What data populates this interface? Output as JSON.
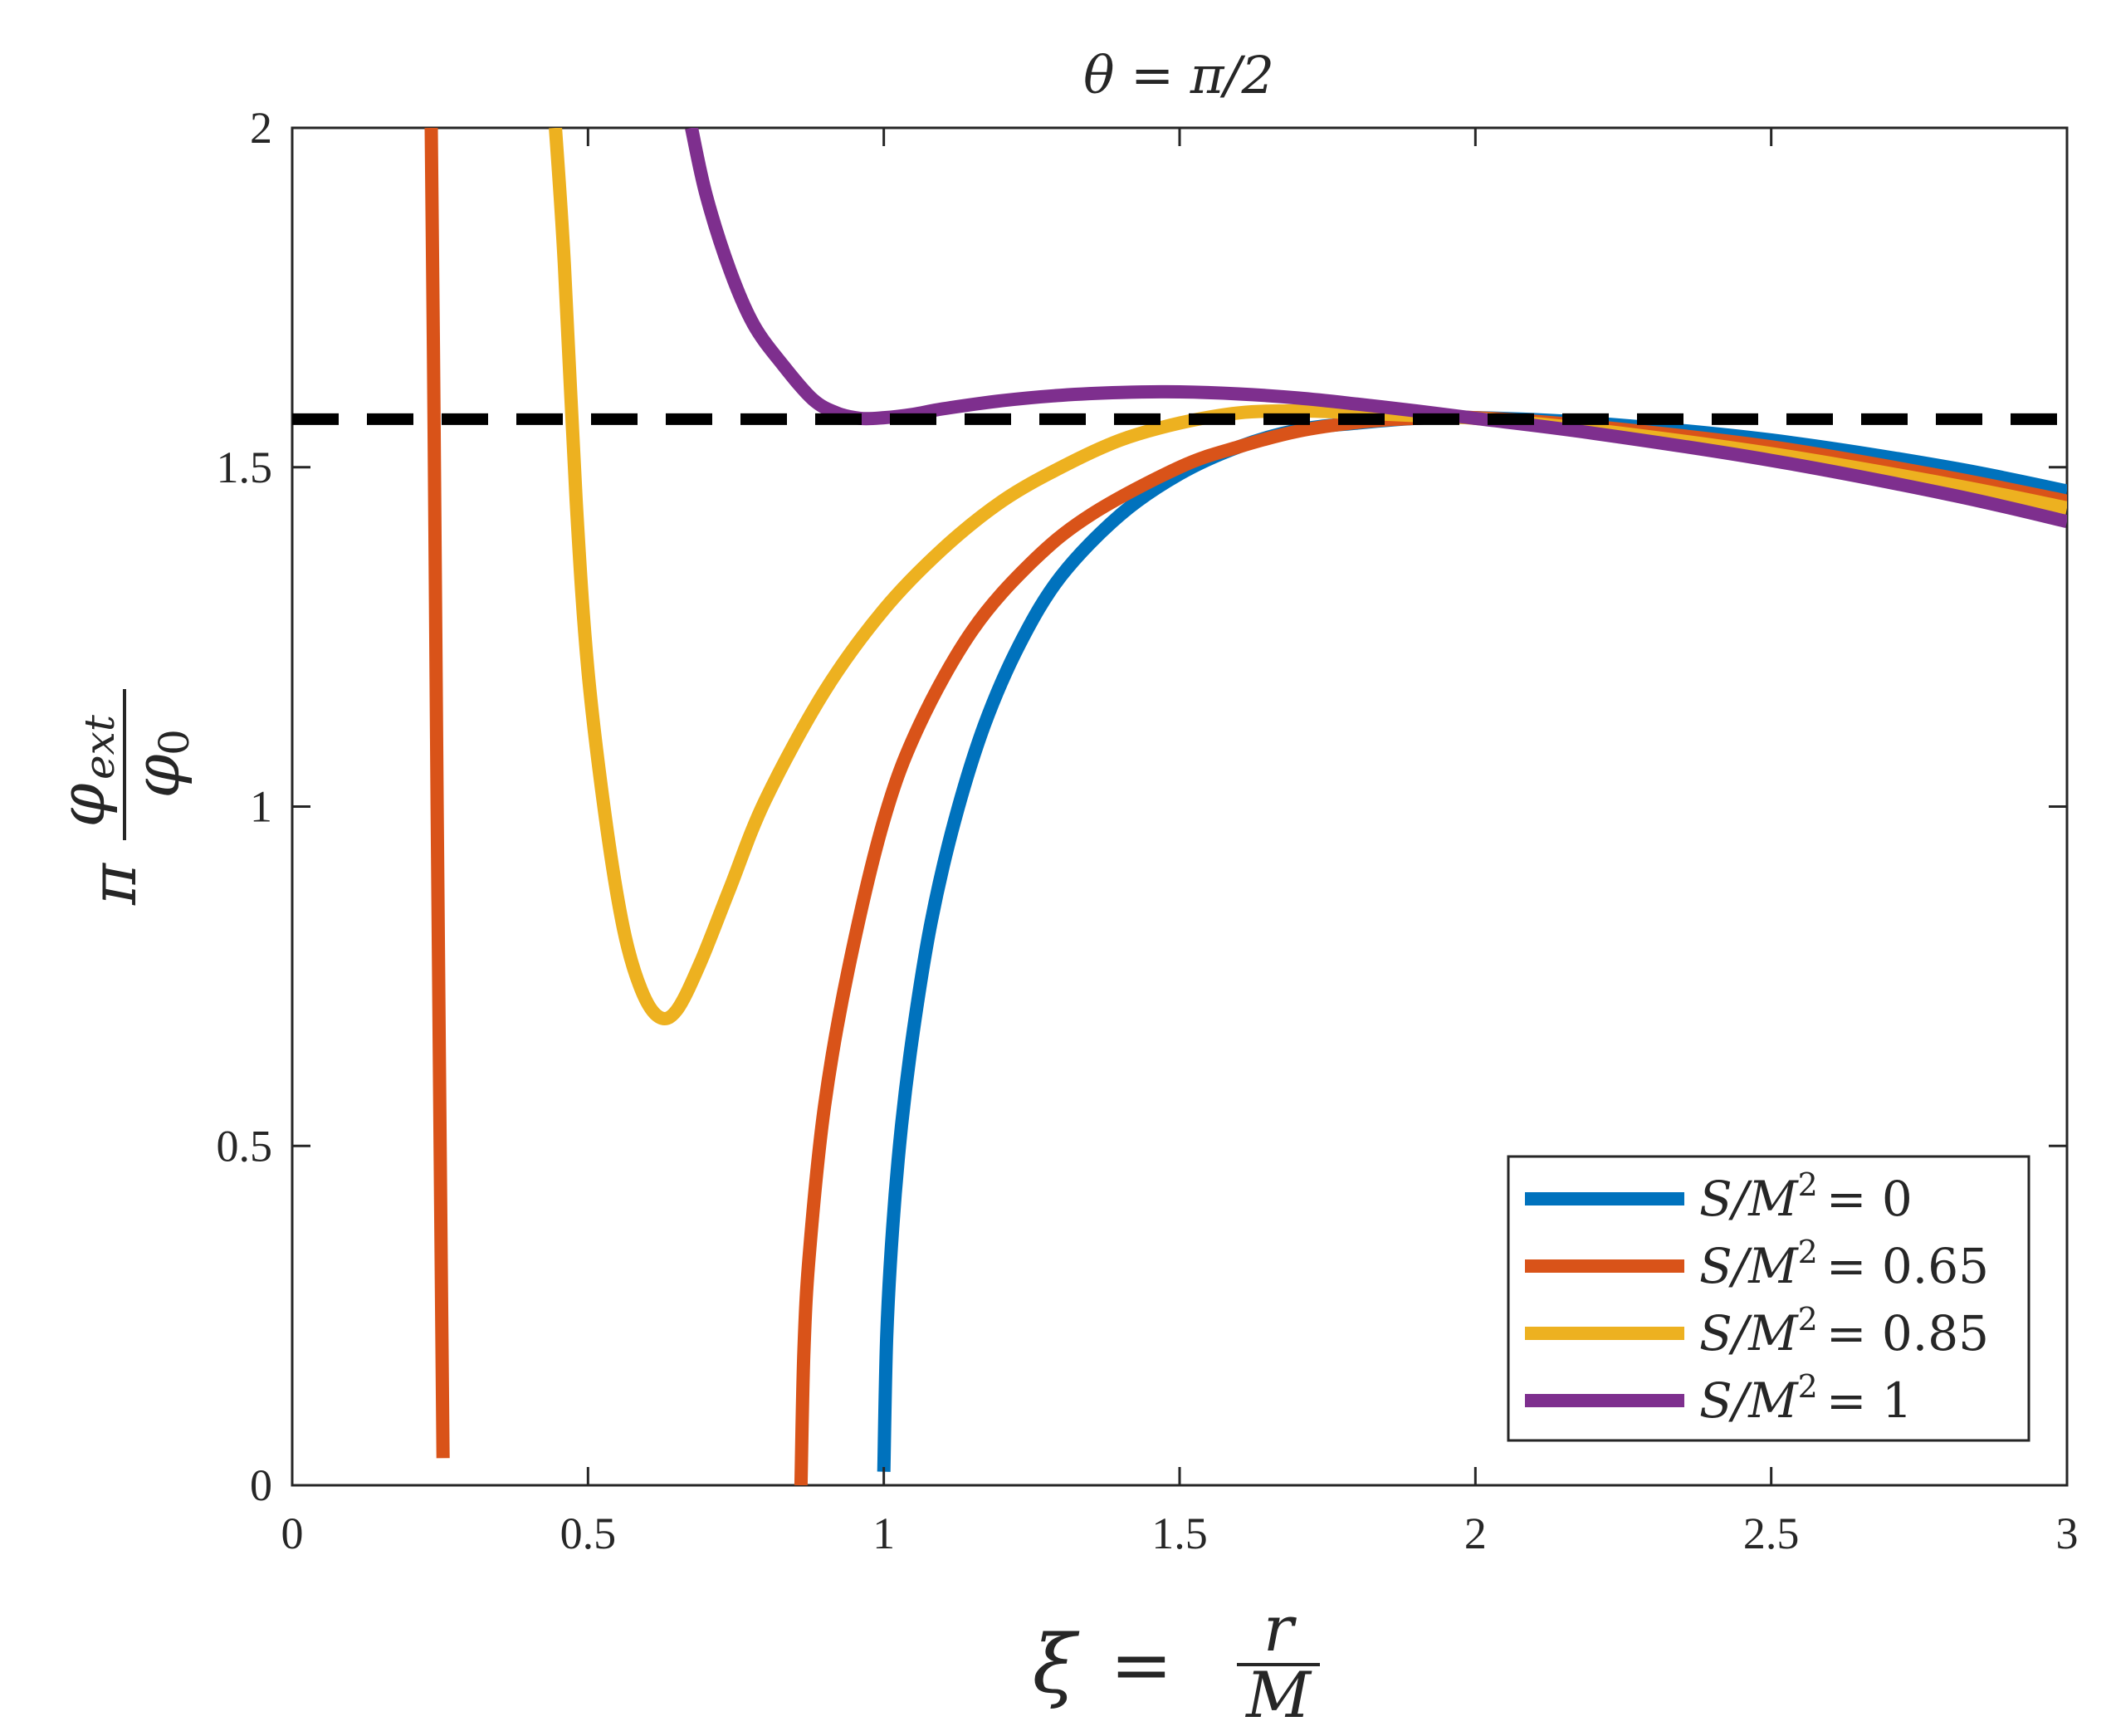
{
  "chart_data": {
    "type": "line",
    "title": "θ = π/2",
    "xlabel": {
      "lhs": "ξ",
      "eq": "=",
      "num": "r",
      "den": "M"
    },
    "ylabel": {
      "lhs": "π",
      "num": "φ",
      "num_sub": "ext",
      "den": "φ",
      "den_sub": "0"
    },
    "xlim": [
      0,
      3
    ],
    "ylim": [
      0,
      2
    ],
    "xticks": [
      0,
      0.5,
      1,
      1.5,
      2,
      2.5,
      3
    ],
    "xtick_labels": [
      "0",
      "0.5",
      "1",
      "1.5",
      "2",
      "2.5",
      "3"
    ],
    "yticks": [
      0,
      0.5,
      1,
      1.5,
      2
    ],
    "ytick_labels": [
      "0",
      "0.5",
      "1",
      "1.5",
      "2"
    ],
    "grid": false,
    "legend_position": "bottom-right",
    "reference_line": {
      "y": 1.5708,
      "style": "dashed",
      "color": "#000000"
    },
    "series": [
      {
        "name": "S/M² = 0",
        "legend": {
          "lhs": "S/M",
          "sup": "2",
          "rhs": "= 0"
        },
        "color": "#0072BD",
        "points": [
          [
            1.0,
            0.02
          ],
          [
            1.005,
            0.22
          ],
          [
            1.015,
            0.38
          ],
          [
            1.03,
            0.53
          ],
          [
            1.05,
            0.67
          ],
          [
            1.08,
            0.83
          ],
          [
            1.12,
            0.98
          ],
          [
            1.17,
            1.12
          ],
          [
            1.23,
            1.24
          ],
          [
            1.3,
            1.34
          ],
          [
            1.4,
            1.43
          ],
          [
            1.5,
            1.49
          ],
          [
            1.6,
            1.53
          ],
          [
            1.7,
            1.555
          ],
          [
            1.8,
            1.565
          ],
          [
            1.9,
            1.572
          ],
          [
            2.0,
            1.573
          ],
          [
            2.2,
            1.565
          ],
          [
            2.5,
            1.54
          ],
          [
            2.8,
            1.5
          ],
          [
            3.0,
            1.465
          ]
        ]
      },
      {
        "name": "S/M² = 0.65",
        "legend": {
          "lhs": "S/M",
          "sup": "2",
          "rhs": "= 0.65"
        },
        "color": "#D95319",
        "points": [
          [
            0.235,
            2.0
          ],
          [
            0.24,
            1.55
          ],
          [
            0.245,
            1.0
          ],
          [
            0.25,
            0.5
          ],
          [
            0.255,
            0.04
          ]
        ],
        "points2": [
          [
            0.86,
            0.0
          ],
          [
            0.865,
            0.2
          ],
          [
            0.875,
            0.35
          ],
          [
            0.9,
            0.56
          ],
          [
            0.94,
            0.76
          ],
          [
            1.0,
            0.98
          ],
          [
            1.06,
            1.12
          ],
          [
            1.15,
            1.26
          ],
          [
            1.25,
            1.36
          ],
          [
            1.35,
            1.43
          ],
          [
            1.5,
            1.5
          ],
          [
            1.6,
            1.53
          ],
          [
            1.7,
            1.553
          ],
          [
            1.8,
            1.566
          ],
          [
            1.9,
            1.572
          ],
          [
            2.0,
            1.573
          ],
          [
            2.2,
            1.56
          ],
          [
            2.5,
            1.53
          ],
          [
            2.8,
            1.485
          ],
          [
            3.0,
            1.45
          ]
        ]
      },
      {
        "name": "S/M² = 0.85",
        "legend": {
          "lhs": "S/M",
          "sup": "2",
          "rhs": "= 0.85"
        },
        "color": "#EDB120",
        "points": [
          [
            0.445,
            2.0
          ],
          [
            0.46,
            1.8
          ],
          [
            0.48,
            1.45
          ],
          [
            0.5,
            1.2
          ],
          [
            0.53,
            0.98
          ],
          [
            0.56,
            0.82
          ],
          [
            0.59,
            0.73
          ],
          [
            0.62,
            0.69
          ],
          [
            0.65,
            0.7
          ],
          [
            0.69,
            0.77
          ],
          [
            0.74,
            0.88
          ],
          [
            0.8,
            1.01
          ],
          [
            0.9,
            1.17
          ],
          [
            1.0,
            1.29
          ],
          [
            1.1,
            1.38
          ],
          [
            1.2,
            1.45
          ],
          [
            1.3,
            1.5
          ],
          [
            1.4,
            1.54
          ],
          [
            1.5,
            1.565
          ],
          [
            1.6,
            1.58
          ],
          [
            1.7,
            1.583
          ],
          [
            1.8,
            1.58
          ],
          [
            1.9,
            1.576
          ],
          [
            2.0,
            1.572
          ],
          [
            2.2,
            1.555
          ],
          [
            2.5,
            1.52
          ],
          [
            2.8,
            1.475
          ],
          [
            3.0,
            1.44
          ]
        ]
      },
      {
        "name": "S/M² = 1",
        "legend": {
          "lhs": "S/M",
          "sup": "2",
          "rhs": "= 1"
        },
        "color": "#7E2F8E",
        "points": [
          [
            0.675,
            2.0
          ],
          [
            0.7,
            1.9
          ],
          [
            0.74,
            1.79
          ],
          [
            0.78,
            1.71
          ],
          [
            0.83,
            1.65
          ],
          [
            0.88,
            1.6
          ],
          [
            0.92,
            1.58
          ],
          [
            0.96,
            1.572
          ],
          [
            1.0,
            1.573
          ],
          [
            1.05,
            1.578
          ],
          [
            1.1,
            1.586
          ],
          [
            1.2,
            1.598
          ],
          [
            1.3,
            1.606
          ],
          [
            1.4,
            1.61
          ],
          [
            1.5,
            1.611
          ],
          [
            1.6,
            1.608
          ],
          [
            1.7,
            1.602
          ],
          [
            1.8,
            1.593
          ],
          [
            1.9,
            1.583
          ],
          [
            2.0,
            1.572
          ],
          [
            2.2,
            1.55
          ],
          [
            2.5,
            1.51
          ],
          [
            2.8,
            1.46
          ],
          [
            3.0,
            1.42
          ]
        ]
      }
    ]
  }
}
